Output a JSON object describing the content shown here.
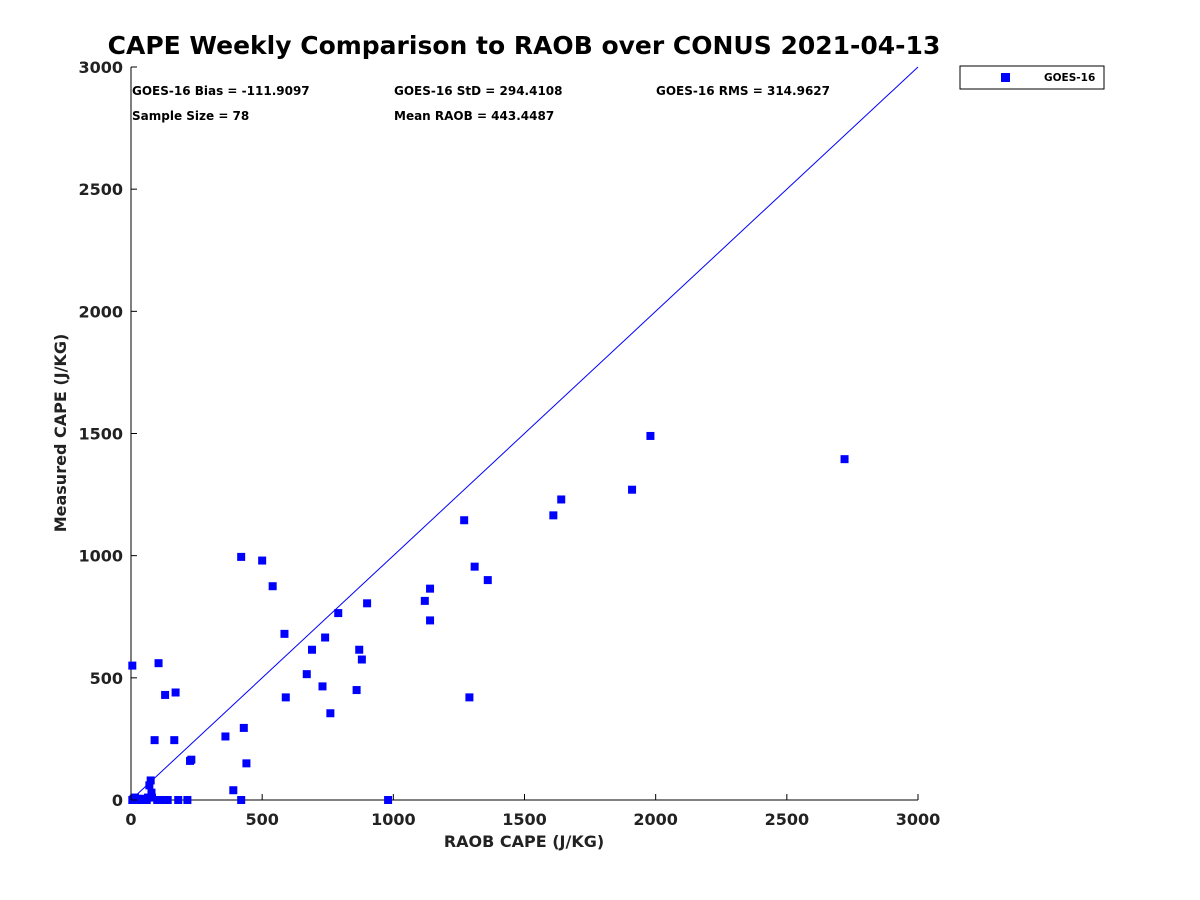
{
  "chart_data": {
    "type": "scatter",
    "title": "CAPE Weekly Comparison to RAOB over CONUS 2021-04-13",
    "xlabel": "RAOB CAPE (J/KG)",
    "ylabel": "Measured CAPE (J/KG)",
    "xlim": [
      0,
      3000
    ],
    "ylim": [
      0,
      3000
    ],
    "xticks": [
      0,
      500,
      1000,
      1500,
      2000,
      2500,
      3000
    ],
    "yticks": [
      0,
      500,
      1000,
      1500,
      2000,
      2500,
      3000
    ],
    "grid": false,
    "legend_position": "outside-top-right",
    "reference_line": {
      "name": "1:1 line",
      "x": [
        0,
        3000
      ],
      "y": [
        0,
        3000
      ],
      "color": "#0000ff"
    },
    "series": [
      {
        "name": "GOES-16",
        "marker": "square",
        "color": "#0000ff",
        "points": [
          [
            5,
            0
          ],
          [
            10,
            5
          ],
          [
            15,
            10
          ],
          [
            25,
            5
          ],
          [
            35,
            0
          ],
          [
            40,
            0
          ],
          [
            50,
            5
          ],
          [
            55,
            0
          ],
          [
            60,
            0
          ],
          [
            65,
            10
          ],
          [
            70,
            60
          ],
          [
            75,
            80
          ],
          [
            78,
            30
          ],
          [
            80,
            10
          ],
          [
            100,
            0
          ],
          [
            115,
            0
          ],
          [
            125,
            0
          ],
          [
            140,
            0
          ],
          [
            180,
            0
          ],
          [
            215,
            0
          ],
          [
            420,
            0
          ],
          [
            980,
            0
          ],
          [
            5,
            550
          ],
          [
            90,
            245
          ],
          [
            105,
            560
          ],
          [
            130,
            430
          ],
          [
            165,
            245
          ],
          [
            170,
            440
          ],
          [
            225,
            160
          ],
          [
            230,
            165
          ],
          [
            360,
            260
          ],
          [
            390,
            40
          ],
          [
            420,
            995
          ],
          [
            430,
            295
          ],
          [
            440,
            150
          ],
          [
            500,
            980
          ],
          [
            540,
            875
          ],
          [
            585,
            680
          ],
          [
            590,
            420
          ],
          [
            670,
            515
          ],
          [
            690,
            615
          ],
          [
            730,
            465
          ],
          [
            740,
            665
          ],
          [
            760,
            355
          ],
          [
            790,
            765
          ],
          [
            860,
            450
          ],
          [
            870,
            615
          ],
          [
            880,
            575
          ],
          [
            900,
            805
          ],
          [
            1120,
            815
          ],
          [
            1140,
            865
          ],
          [
            1140,
            735
          ],
          [
            1270,
            1145
          ],
          [
            1290,
            420
          ],
          [
            1310,
            955
          ],
          [
            1360,
            900
          ],
          [
            1610,
            1165
          ],
          [
            1640,
            1230
          ],
          [
            1910,
            1270
          ],
          [
            1980,
            1490
          ],
          [
            2720,
            1395
          ]
        ]
      }
    ],
    "legend": [
      {
        "label": "GOES-16",
        "marker": "square",
        "color": "#0000ff"
      }
    ],
    "annotations": [
      {
        "id": "bias",
        "text": "GOES-16 Bias = -111.9097"
      },
      {
        "id": "std",
        "text": "GOES-16 StD = 294.4108"
      },
      {
        "id": "rms",
        "text": "GOES-16 RMS = 314.9627"
      },
      {
        "id": "n",
        "text": "Sample Size = 78"
      },
      {
        "id": "mean",
        "text": "Mean RAOB = 443.4487"
      }
    ]
  }
}
